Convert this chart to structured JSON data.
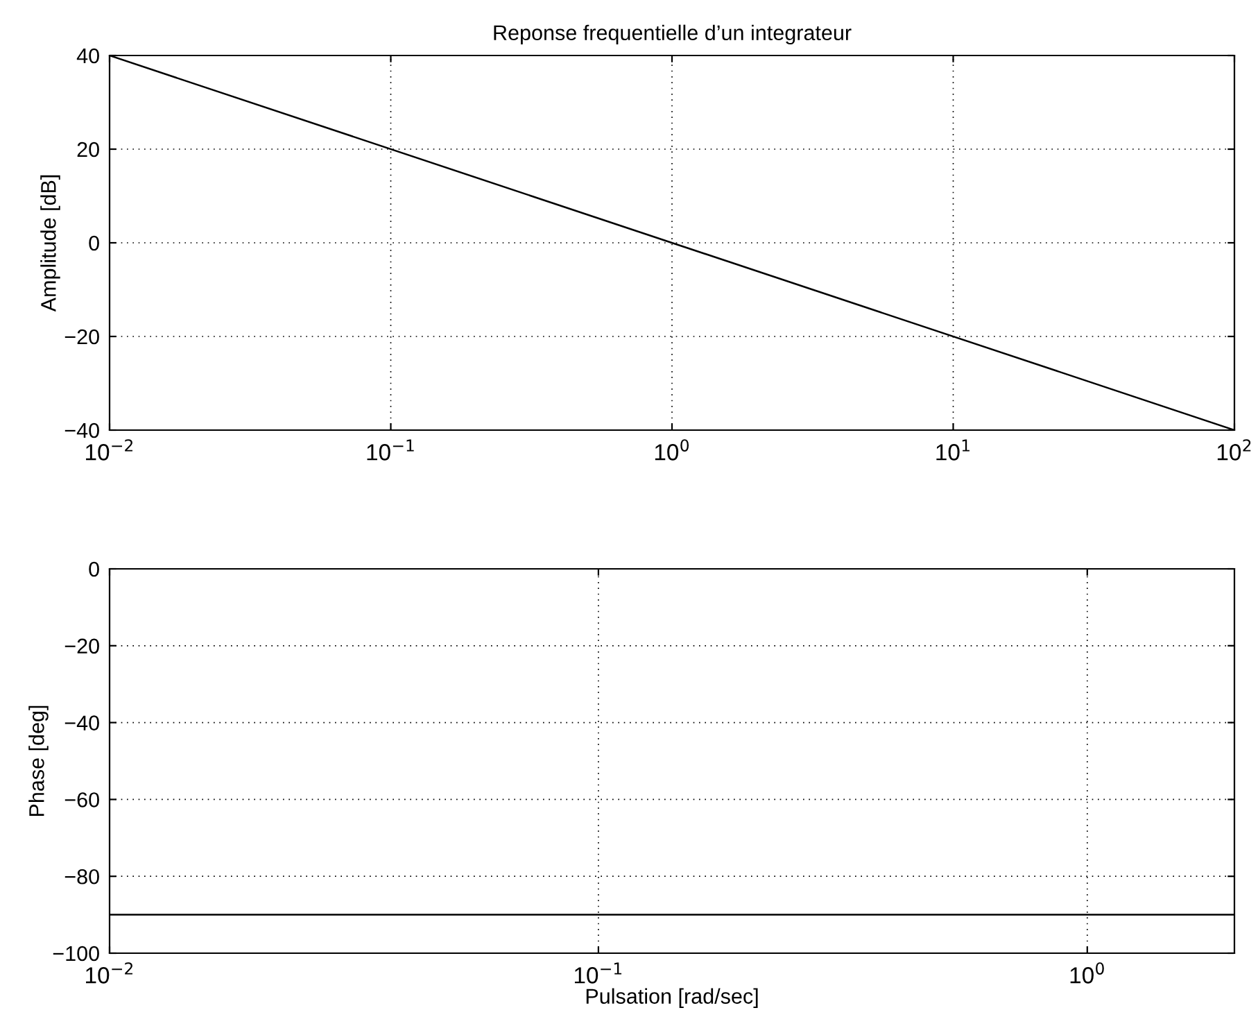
{
  "chart_data": [
    {
      "type": "line",
      "title": "Reponse frequentielle d’un integrateur",
      "ylabel": "Amplitude [dB]",
      "log": "x",
      "x": [
        0.01,
        100
      ],
      "series": [
        {
          "color": "#000000",
          "values": [
            40,
            -40
          ]
        }
      ],
      "xlim": [
        0.01,
        100
      ],
      "ylim": [
        -40,
        40
      ],
      "xticks": [
        {
          "value": 0.01,
          "label": "10$^{−2}$"
        },
        {
          "value": 0.1,
          "label": "10$^{−1}$"
        },
        {
          "value": 1,
          "label": "10$^{0}$"
        },
        {
          "value": 10,
          "label": "10$^{1}$"
        },
        {
          "value": 100,
          "label": "10$^{2}$"
        }
      ],
      "yticks": [
        -40,
        -20,
        0,
        20,
        40
      ],
      "grid": true,
      "line_style": "solid"
    },
    {
      "type": "line",
      "xlabel": "Pulsation [rad/sec]",
      "ylabel": "Phase [deg]",
      "log": "x",
      "x": [
        0.01,
        2
      ],
      "series": [
        {
          "color": "#000000",
          "values": [
            -90,
            -90
          ]
        }
      ],
      "xlim": [
        0.01,
        2
      ],
      "ylim": [
        -100,
        0
      ],
      "xticks": [
        {
          "value": 0.01,
          "label": "10$^{−2}$"
        },
        {
          "value": 0.1,
          "label": "10$^{−1}$"
        },
        {
          "value": 1,
          "label": "10$^{0}$"
        }
      ],
      "yticks": [
        -100,
        -80,
        -60,
        -40,
        -20,
        0
      ],
      "grid": true,
      "line_style": "solid"
    }
  ]
}
